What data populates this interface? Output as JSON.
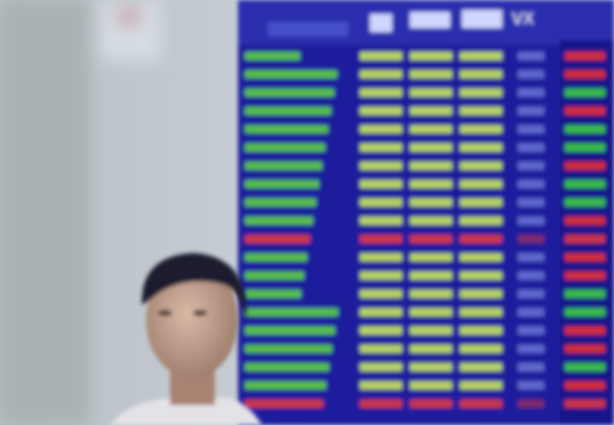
{
  "board": {
    "header": [
      "VX"
    ]
  }
}
